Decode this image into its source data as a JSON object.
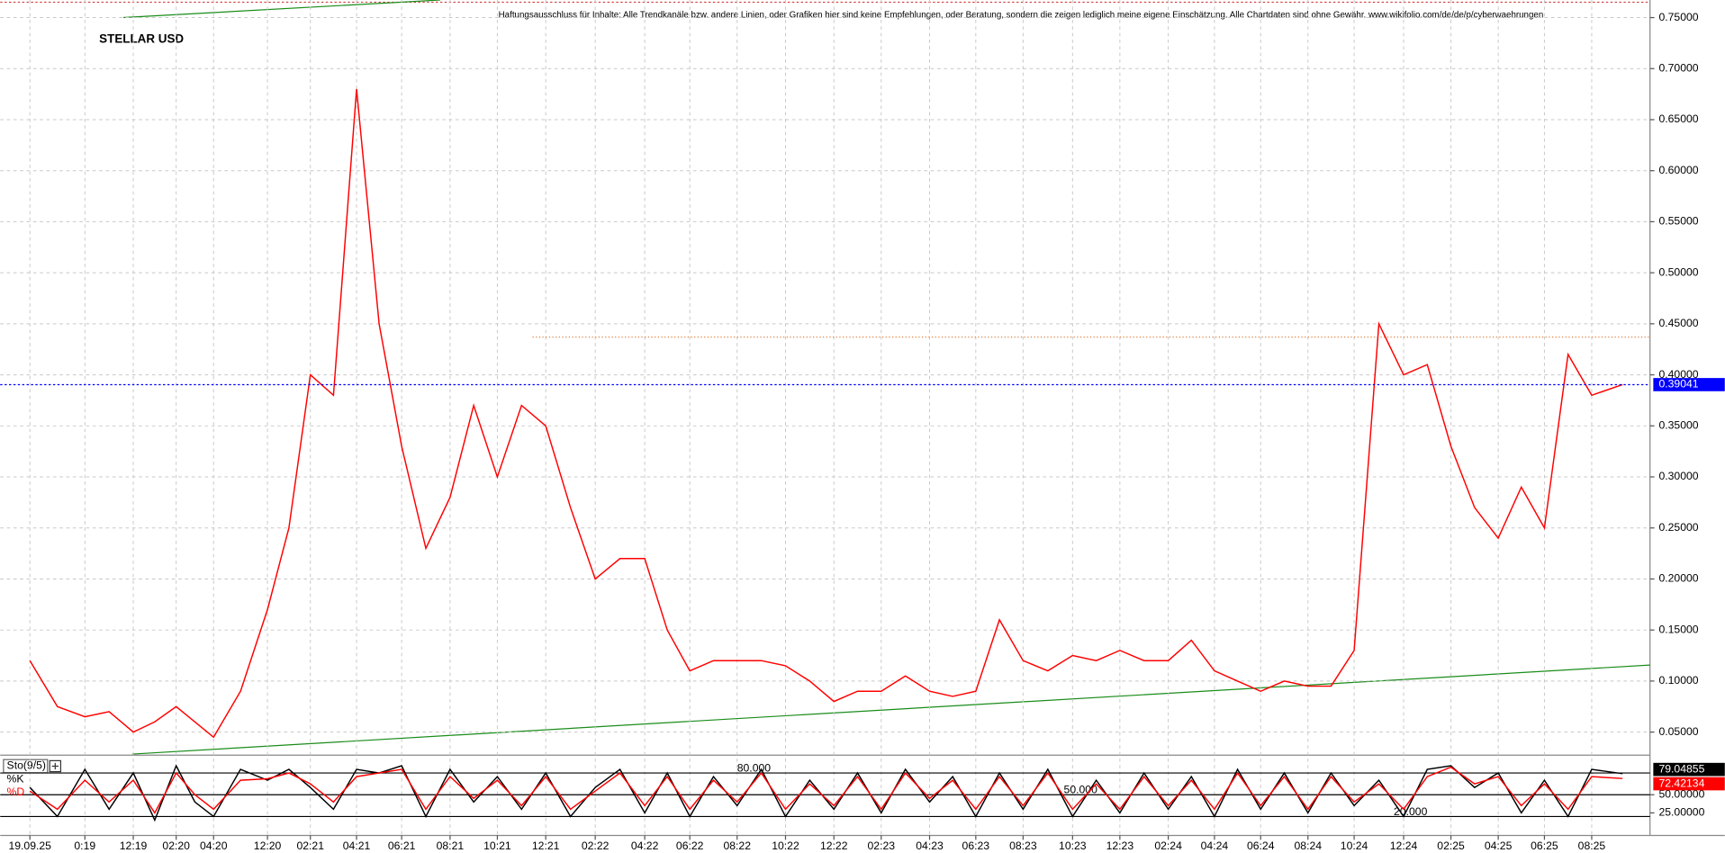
{
  "chart_data": [
    {
      "type": "line",
      "title": "STELLAR USD",
      "disclaimer": "Haftungsausschluss für Inhalte: Alle Trendkanäle bzw. andere Linien, oder Grafiken hier sind keine Empfehlungen, oder Beratung, sondern die zeigen lediglich meine eigene Einschätzung. Alle Chartdaten sind ohne Gewähr.  www.wikifolio.com/de/de/p/cyberwaehrungen",
      "categories": [
        "19.09.25",
        null,
        "0:19",
        null,
        "12:19",
        null,
        "02:20",
        null,
        "04:20",
        null,
        "12:20",
        null,
        "02:21",
        null,
        "04:21",
        null,
        "06:21",
        null,
        "08:21",
        null,
        "10:21",
        null,
        "12:21",
        null,
        "02:22",
        null,
        "04:22",
        null,
        "06:22",
        null,
        "08:22",
        null,
        "10:22",
        null,
        "12:22",
        null,
        "02:23",
        null,
        "04:23",
        null,
        "06:23",
        null,
        "08:23",
        null,
        "10:23",
        null,
        "12:23",
        null,
        "02:24",
        null,
        "04:24",
        null,
        "06:24",
        null,
        "08:24",
        null,
        "10:24",
        null,
        "12:24",
        null,
        "02:25",
        null,
        "04:25",
        null,
        "06:25",
        null,
        "08:25",
        null
      ],
      "series": [
        {
          "color": "#ff0000",
          "values": [
            0.12,
            0.075,
            0.065,
            0.07,
            0.05,
            0.06,
            0.075,
            0.06,
            0.045,
            0.09,
            0.17,
            0.25,
            0.4,
            0.38,
            0.68,
            0.45,
            0.33,
            0.23,
            0.28,
            0.37,
            0.3,
            0.37,
            0.35,
            0.27,
            0.2,
            0.22,
            0.22,
            0.15,
            0.11,
            0.12,
            0.12,
            0.12,
            0.115,
            0.1,
            0.08,
            0.09,
            0.09,
            0.105,
            0.09,
            0.085,
            0.09,
            0.16,
            0.12,
            0.11,
            0.125,
            0.12,
            0.13,
            0.12,
            0.12,
            0.14,
            0.11,
            0.1,
            0.09,
            0.1,
            0.095,
            0.095,
            0.13,
            0.45,
            0.4,
            0.41,
            0.33,
            0.27,
            0.24,
            0.29,
            0.25,
            0.42,
            0.38,
            0.39041
          ]
        }
      ],
      "current_color": "#0000ff",
      "resistance": {
        "value": 0.437,
        "color": "#e08040"
      },
      "ylim": [
        0.0285,
        0.765
      ],
      "yticks": [
        {
          "value": 0.05,
          "label": "0.05000"
        },
        {
          "value": 0.1,
          "label": "0.10000"
        },
        {
          "value": 0.15,
          "label": "0.15000"
        },
        {
          "value": 0.2,
          "label": "0.20000"
        },
        {
          "value": 0.25,
          "label": "0.25000"
        },
        {
          "value": 0.3,
          "label": "0.30000"
        },
        {
          "value": 0.35,
          "label": "0.35000"
        },
        {
          "value": 0.4,
          "label": "0.40000"
        },
        {
          "value": 0.45,
          "label": "0.45000"
        },
        {
          "value": 0.5,
          "label": "0.50000"
        },
        {
          "value": 0.55,
          "label": "0.55000"
        },
        {
          "value": 0.6,
          "label": "0.60000"
        },
        {
          "value": 0.65,
          "label": "0.65000"
        },
        {
          "value": 0.7,
          "label": "0.70000"
        },
        {
          "value": 0.75,
          "label": "0.75000"
        }
      ],
      "grid": true
    },
    {
      "type": "line",
      "title": "Sto(9/5)",
      "series": [
        {
          "name": "%K",
          "color": "#000000",
          "values": [
            60,
            20,
            85,
            30,
            80,
            15,
            90,
            40,
            20,
            85,
            70,
            85,
            60,
            30,
            85,
            80,
            90,
            20,
            85,
            40,
            75,
            30,
            80,
            20,
            60,
            85,
            25,
            80,
            20,
            75,
            35,
            85,
            20,
            70,
            30,
            80,
            25,
            85,
            40,
            75,
            20,
            80,
            30,
            85,
            20,
            70,
            25,
            80,
            30,
            75,
            20,
            85,
            30,
            80,
            25,
            80,
            35,
            70,
            20,
            85,
            90,
            60,
            80,
            25,
            70,
            20,
            85,
            79.04855
          ]
        },
        {
          "name": "%D",
          "color": "#ff0000",
          "values": [
            55,
            30,
            70,
            40,
            70,
            25,
            80,
            50,
            30,
            70,
            72,
            80,
            65,
            40,
            75,
            80,
            85,
            30,
            75,
            45,
            70,
            35,
            75,
            30,
            55,
            80,
            35,
            75,
            30,
            70,
            40,
            80,
            30,
            65,
            35,
            75,
            30,
            80,
            45,
            70,
            30,
            75,
            35,
            80,
            30,
            65,
            30,
            75,
            35,
            70,
            30,
            80,
            35,
            75,
            30,
            75,
            40,
            65,
            30,
            75,
            88,
            65,
            75,
            35,
            65,
            30,
            75,
            72.42134
          ]
        }
      ],
      "levels": [
        {
          "value": 80,
          "label": "80.000"
        },
        {
          "value": 50,
          "label": "50.000"
        },
        {
          "value": 20,
          "label": "20.000"
        }
      ],
      "ylim": [
        0,
        100
      ],
      "yticks": [
        {
          "value": 50,
          "label": "50.00000"
        },
        {
          "value": 25,
          "label": "25.00000"
        }
      ]
    }
  ]
}
